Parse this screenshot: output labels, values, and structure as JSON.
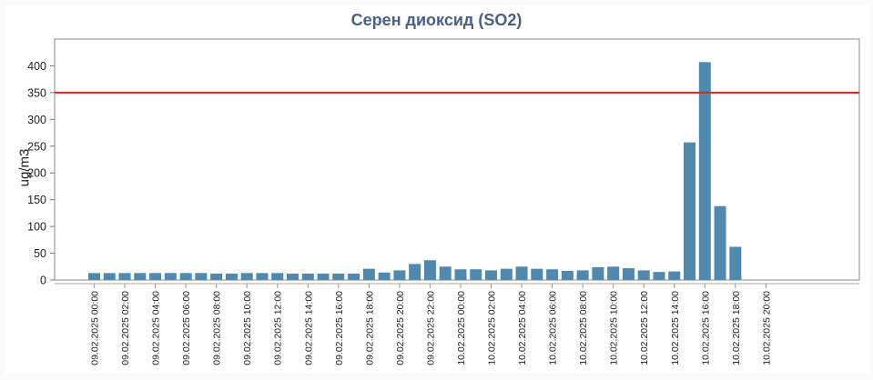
{
  "chart_data": {
    "type": "bar",
    "title": "Серен диоксид (SO2)",
    "xlabel": "",
    "ylabel": "ug/m3",
    "ylim": [
      0,
      450
    ],
    "yticks": [
      0,
      50,
      100,
      150,
      200,
      250,
      300,
      350,
      400
    ],
    "threshold": 350,
    "threshold_color": "#e02020",
    "bar_color": "#4f89b0",
    "grid": false,
    "categories": [
      "09.02.2025 00:00",
      "09.02.2025 01:00",
      "09.02.2025 02:00",
      "09.02.2025 03:00",
      "09.02.2025 04:00",
      "09.02.2025 05:00",
      "09.02.2025 06:00",
      "09.02.2025 07:00",
      "09.02.2025 08:00",
      "09.02.2025 09:00",
      "09.02.2025 10:00",
      "09.02.2025 11:00",
      "09.02.2025 12:00",
      "09.02.2025 13:00",
      "09.02.2025 14:00",
      "09.02.2025 15:00",
      "09.02.2025 16:00",
      "09.02.2025 17:00",
      "09.02.2025 18:00",
      "09.02.2025 19:00",
      "09.02.2025 20:00",
      "09.02.2025 21:00",
      "09.02.2025 22:00",
      "09.02.2025 23:00",
      "10.02.2025 00:00",
      "10.02.2025 01:00",
      "10.02.2025 02:00",
      "10.02.2025 03:00",
      "10.02.2025 04:00",
      "10.02.2025 05:00",
      "10.02.2025 06:00",
      "10.02.2025 07:00",
      "10.02.2025 08:00",
      "10.02.2025 09:00",
      "10.02.2025 10:00",
      "10.02.2025 11:00",
      "10.02.2025 12:00",
      "10.02.2025 13:00",
      "10.02.2025 14:00",
      "10.02.2025 15:00",
      "10.02.2025 16:00",
      "10.02.2025 17:00",
      "10.02.2025 18:00",
      "10.02.2025 19:00",
      "10.02.2025 20:00",
      "10.02.2025 21:00",
      "10.02.2025 22:00",
      "10.02.2025 23:00"
    ],
    "values": [
      13,
      13,
      13,
      13,
      13,
      13,
      13,
      13,
      12,
      12,
      13,
      13,
      13,
      12,
      12,
      12,
      12,
      12,
      21,
      14,
      18,
      30,
      37,
      25,
      20,
      20,
      18,
      21,
      25,
      21,
      20,
      17,
      18,
      24,
      25,
      22,
      18,
      15,
      16,
      257,
      407,
      138,
      62,
      null,
      null,
      null,
      null,
      null
    ],
    "visible_tick_labels": [
      "09.02.2025 00:00",
      "09.02.2025 02:00",
      "09.02.2025 04:00",
      "09.02.2025 06:00",
      "09.02.2025 08:00",
      "09.02.2025 10:00",
      "09.02.2025 12:00",
      "09.02.2025 14:00",
      "09.02.2025 16:00",
      "09.02.2025 18:00",
      "09.02.2025 20:00",
      "09.02.2025 22:00",
      "10.02.2025 00:00",
      "10.02.2025 02:00",
      "10.02.2025 04:00",
      "10.02.2025 06:00",
      "10.02.2025 08:00",
      "10.02.2025 10:00",
      "10.02.2025 12:00",
      "10.02.2025 14:00",
      "10.02.2025 16:00",
      "10.02.2025 18:00",
      "10.02.2025 20:00"
    ]
  }
}
